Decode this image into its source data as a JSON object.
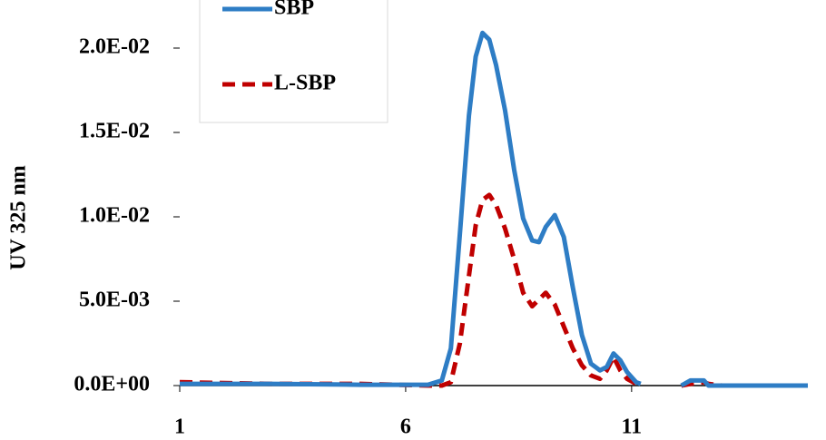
{
  "chart_data": {
    "type": "line",
    "y_label": "UV 325 nm",
    "x": [
      1,
      3,
      5,
      6.5,
      6.8,
      7.0,
      7.2,
      7.4,
      7.55,
      7.7,
      7.85,
      8.0,
      8.2,
      8.4,
      8.6,
      8.8,
      8.95,
      9.1,
      9.3,
      9.5,
      9.7,
      9.9,
      10.1,
      10.3,
      10.45,
      10.6,
      10.75,
      10.9,
      11.1,
      11.2,
      11.6,
      12.1,
      12.3,
      12.6,
      12.7,
      13,
      14.9
    ],
    "series": [
      {
        "name": "SBP",
        "color": "#2e7dc5",
        "dashed": false,
        "values": [
          0.0001,
          0.0001,
          5e-05,
          5e-05,
          0.0003,
          0.0022,
          0.009,
          0.016,
          0.0195,
          0.0209,
          0.0205,
          0.019,
          0.0163,
          0.0128,
          0.0099,
          0.0086,
          0.0085,
          0.0094,
          0.0101,
          0.0088,
          0.0058,
          0.003,
          0.0013,
          0.0009,
          0.0011,
          0.0019,
          0.0015,
          0.0008,
          0.0002,
          0.0001,
          null,
          0.0,
          0.0003,
          0.0003,
          0.0,
          0.0,
          0.0
        ]
      },
      {
        "name": "L-SBP",
        "color": "#c00000",
        "dashed": true,
        "values": [
          0.0002,
          0.0001,
          0.0001,
          0.0,
          0.0,
          0.0002,
          0.0025,
          0.0065,
          0.0095,
          0.011,
          0.0113,
          0.0107,
          0.0093,
          0.0075,
          0.0055,
          0.0047,
          0.0051,
          0.0055,
          0.0048,
          0.0035,
          0.0022,
          0.0012,
          0.0006,
          0.0004,
          0.0009,
          0.0017,
          0.0009,
          0.0004,
          0.0001,
          0.0,
          null,
          0.0,
          0.0001,
          0.0002,
          0.0001,
          0.0,
          0.0
        ]
      }
    ],
    "xlim": [
      1,
      14.9
    ],
    "xticks": [
      1,
      6,
      11
    ],
    "ylim": [
      0,
      0.0225
    ],
    "yticks": [
      {
        "value": 0,
        "label": "0.0E+00"
      },
      {
        "value": 0.005,
        "label": "5.0E-03"
      },
      {
        "value": 0.01,
        "label": "1.0E-02"
      },
      {
        "value": 0.015,
        "label": "1.5E-02"
      },
      {
        "value": 0.02,
        "label": "2.0E-02"
      }
    ],
    "grid": false,
    "legend": "top-left"
  }
}
